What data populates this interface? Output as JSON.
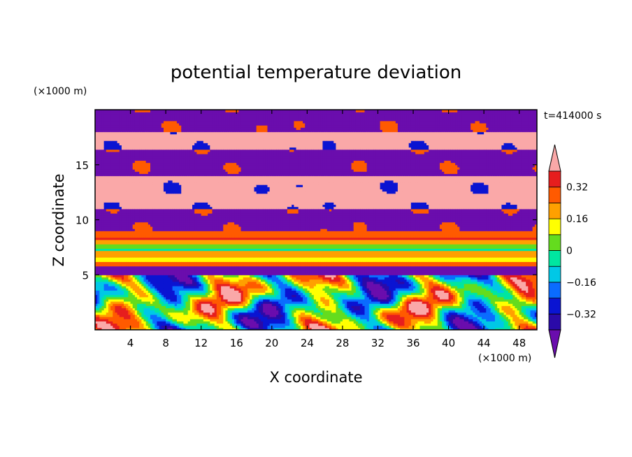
{
  "chart_data": {
    "type": "heatmap",
    "title": "potential temperature deviation",
    "time_label": "t=414000 s",
    "xlabel": "X coordinate",
    "ylabel": "Z coordinate",
    "x_unit": "(×1000 m)",
    "y_unit": "(×1000 m)",
    "xlim": [
      0,
      50
    ],
    "ylim": [
      0,
      20
    ],
    "x_ticks": [
      4,
      8,
      12,
      16,
      20,
      24,
      28,
      32,
      36,
      40,
      44,
      48
    ],
    "y_ticks": [
      5,
      10,
      15
    ],
    "colorbar": {
      "levels": [
        -0.4,
        -0.32,
        -0.24,
        -0.16,
        -0.08,
        0,
        0.08,
        0.16,
        0.24,
        0.32,
        0.4
      ],
      "labels": [
        "0.32",
        "0.16",
        "0",
        "−0.16",
        "−0.32"
      ],
      "label_values": [
        0.32,
        0.16,
        0,
        -0.16,
        -0.32
      ],
      "colors": [
        "#6a0dad",
        "#2a0aa8",
        "#0a14d2",
        "#0a6cff",
        "#00c8e6",
        "#00e6a0",
        "#64dc1e",
        "#ffff00",
        "#ffa000",
        "#ff5a00",
        "#e61e1e",
        "#faa8a8"
      ],
      "extend": "both"
    },
    "field_bands_z": [
      {
        "z0": 18,
        "z1": 20,
        "value": -0.5
      },
      {
        "z0": 16.5,
        "z1": 18,
        "value": 0.5
      },
      {
        "z0": 14,
        "z1": 16.5,
        "value": -0.5
      },
      {
        "z0": 11,
        "z1": 14,
        "value": 0.5
      },
      {
        "z0": 9,
        "z1": 11,
        "value": -0.5
      },
      {
        "z0": 8.5,
        "z1": 9,
        "value": 0.28
      },
      {
        "z0": 8.2,
        "z1": 8.5,
        "value": 0.36
      },
      {
        "z0": 7.9,
        "z1": 8.2,
        "value": 0.2
      },
      {
        "z0": 7.5,
        "z1": 7.9,
        "value": 0.04
      },
      {
        "z0": 7.2,
        "z1": 7.5,
        "value": -0.04
      },
      {
        "z0": 6.7,
        "z1": 7.2,
        "value": 0.2
      },
      {
        "z0": 6.3,
        "z1": 6.7,
        "value": 0.12
      },
      {
        "z0": 5.9,
        "z1": 6.3,
        "value": 0.28
      },
      {
        "z0": 5,
        "z1": 5.9,
        "value": -0.5
      }
    ]
  }
}
